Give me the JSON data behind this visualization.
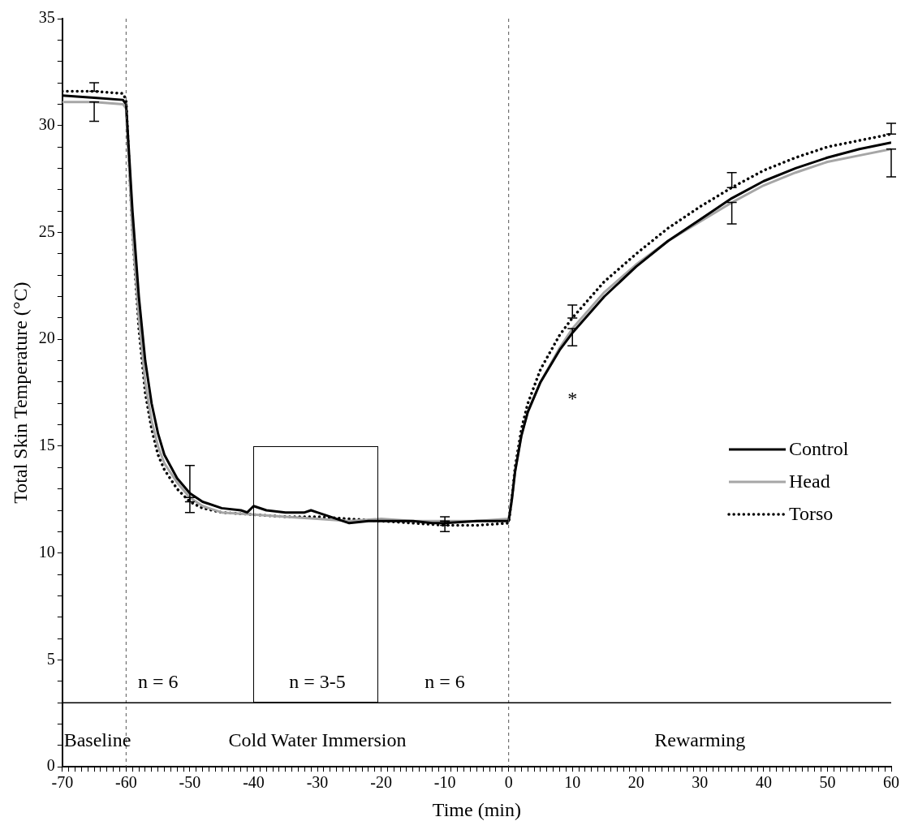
{
  "chart_data": {
    "type": "line",
    "xlabel": "Time (min)",
    "ylabel": "Total Skin Temperature (°C)",
    "xlim": [
      -70,
      60
    ],
    "ylim": [
      0,
      35
    ],
    "xticks": [
      -70,
      {
        "value": -69,
        "label": null
      },
      {
        "value": -68,
        "label": null
      },
      {
        "value": -67,
        "label": null
      },
      {
        "value": -66,
        "label": null
      },
      {
        "value": -65,
        "label": null
      },
      {
        "value": -64,
        "label": null
      },
      {
        "value": -63,
        "label": null
      },
      {
        "value": -62,
        "label": null
      },
      {
        "value": -61,
        "label": null
      },
      -60,
      {
        "value": -59,
        "label": null
      },
      {
        "value": -58,
        "label": null
      },
      {
        "value": -57,
        "label": null
      },
      {
        "value": -56,
        "label": null
      },
      {
        "value": -55,
        "label": null
      },
      {
        "value": -54,
        "label": null
      },
      {
        "value": -53,
        "label": null
      },
      {
        "value": -52,
        "label": null
      },
      {
        "value": -51,
        "label": null
      },
      -50,
      {
        "value": -49,
        "label": null
      },
      {
        "value": -48,
        "label": null
      },
      {
        "value": -47,
        "label": null
      },
      {
        "value": -46,
        "label": null
      },
      {
        "value": -45,
        "label": null
      },
      {
        "value": -44,
        "label": null
      },
      {
        "value": -43,
        "label": null
      },
      {
        "value": -42,
        "label": null
      },
      {
        "value": -41,
        "label": null
      },
      -40,
      {
        "value": -39,
        "label": null
      },
      {
        "value": -38,
        "label": null
      },
      {
        "value": -37,
        "label": null
      },
      {
        "value": -36,
        "label": null
      },
      {
        "value": -35,
        "label": null
      },
      {
        "value": -34,
        "label": null
      },
      {
        "value": -33,
        "label": null
      },
      {
        "value": -32,
        "label": null
      },
      {
        "value": -31,
        "label": null
      },
      -30,
      {
        "value": -29,
        "label": null
      },
      {
        "value": -28,
        "label": null
      },
      {
        "value": -27,
        "label": null
      },
      {
        "value": -26,
        "label": null
      },
      {
        "value": -25,
        "label": null
      },
      {
        "value": -24,
        "label": null
      },
      {
        "value": -23,
        "label": null
      },
      {
        "value": -22,
        "label": null
      },
      {
        "value": -21,
        "label": null
      },
      -20,
      {
        "value": -19,
        "label": null
      },
      {
        "value": -18,
        "label": null
      },
      {
        "value": -17,
        "label": null
      },
      {
        "value": -16,
        "label": null
      },
      {
        "value": -15,
        "label": null
      },
      {
        "value": -14,
        "label": null
      },
      {
        "value": -13,
        "label": null
      },
      {
        "value": -12,
        "label": null
      },
      {
        "value": -11,
        "label": null
      },
      -10,
      {
        "value": -9,
        "label": null
      },
      {
        "value": -8,
        "label": null
      },
      {
        "value": -7,
        "label": null
      },
      {
        "value": -6,
        "label": null
      },
      {
        "value": -5,
        "label": null
      },
      {
        "value": -4,
        "label": null
      },
      {
        "value": -3,
        "label": null
      },
      {
        "value": -2,
        "label": null
      },
      {
        "value": -1,
        "label": null
      },
      0,
      {
        "value": 1,
        "label": null
      },
      {
        "value": 2,
        "label": null
      },
      {
        "value": 3,
        "label": null
      },
      {
        "value": 4,
        "label": null
      },
      {
        "value": 5,
        "label": null
      },
      {
        "value": 6,
        "label": null
      },
      {
        "value": 7,
        "label": null
      },
      {
        "value": 8,
        "label": null
      },
      {
        "value": 9,
        "label": null
      },
      10,
      {
        "value": 11,
        "label": null
      },
      {
        "value": 12,
        "label": null
      },
      {
        "value": 13,
        "label": null
      },
      {
        "value": 14,
        "label": null
      },
      {
        "value": 15,
        "label": null
      },
      {
        "value": 16,
        "label": null
      },
      {
        "value": 17,
        "label": null
      },
      {
        "value": 18,
        "label": null
      },
      {
        "value": 19,
        "label": null
      },
      20,
      {
        "value": 21,
        "label": null
      },
      {
        "value": 22,
        "label": null
      },
      {
        "value": 23,
        "label": null
      },
      {
        "value": 24,
        "label": null
      },
      {
        "value": 25,
        "label": null
      },
      {
        "value": 26,
        "label": null
      },
      {
        "value": 27,
        "label": null
      },
      {
        "value": 28,
        "label": null
      },
      {
        "value": 29,
        "label": null
      },
      30,
      {
        "value": 31,
        "label": null
      },
      {
        "value": 32,
        "label": null
      },
      {
        "value": 33,
        "label": null
      },
      {
        "value": 34,
        "label": null
      },
      {
        "value": 35,
        "label": null
      },
      {
        "value": 36,
        "label": null
      },
      {
        "value": 37,
        "label": null
      },
      {
        "value": 38,
        "label": null
      },
      {
        "value": 39,
        "label": null
      },
      40,
      {
        "value": 41,
        "label": null
      },
      {
        "value": 42,
        "label": null
      },
      {
        "value": 43,
        "label": null
      },
      {
        "value": 44,
        "label": null
      },
      {
        "value": 45,
        "label": null
      },
      {
        "value": 46,
        "label": null
      },
      {
        "value": 47,
        "label": null
      },
      {
        "value": 48,
        "label": null
      },
      {
        "value": 49,
        "label": null
      },
      50,
      {
        "value": 51,
        "label": null
      },
      {
        "value": 52,
        "label": null
      },
      {
        "value": 53,
        "label": null
      },
      {
        "value": 54,
        "label": null
      },
      {
        "value": 55,
        "label": null
      },
      {
        "value": 56,
        "label": null
      },
      {
        "value": 57,
        "label": null
      },
      {
        "value": 58,
        "label": null
      },
      {
        "value": 59,
        "label": null
      },
      60
    ],
    "yticks": [
      0,
      {
        "value": 1,
        "label": null
      },
      {
        "value": 2,
        "label": null
      },
      {
        "value": 3,
        "label": null
      },
      {
        "value": 4,
        "label": null
      },
      5,
      {
        "value": 6,
        "label": null
      },
      {
        "value": 7,
        "label": null
      },
      {
        "value": 8,
        "label": null
      },
      {
        "value": 9,
        "label": null
      },
      10,
      {
        "value": 11,
        "label": null
      },
      {
        "value": 12,
        "label": null
      },
      {
        "value": 13,
        "label": null
      },
      {
        "value": 14,
        "label": null
      },
      15,
      {
        "value": 16,
        "label": null
      },
      {
        "value": 17,
        "label": null
      },
      {
        "value": 18,
        "label": null
      },
      {
        "value": 19,
        "label": null
      },
      20,
      {
        "value": 21,
        "label": null
      },
      {
        "value": 22,
        "label": null
      },
      {
        "value": 23,
        "label": null
      },
      {
        "value": 24,
        "label": null
      },
      25,
      {
        "value": 26,
        "label": null
      },
      {
        "value": 27,
        "label": null
      },
      {
        "value": 28,
        "label": null
      },
      {
        "value": 29,
        "label": null
      },
      30,
      {
        "value": 31,
        "label": null
      },
      {
        "value": 32,
        "label": null
      },
      {
        "value": 33,
        "label": null
      },
      {
        "value": 34,
        "label": null
      },
      35
    ],
    "grid": false,
    "legend": "right",
    "marker": "none",
    "series": [
      {
        "name": "Control",
        "color": "#000000",
        "line_style": "solid",
        "x": [
          -70,
          -65,
          -60.5,
          -60,
          -59,
          -58,
          -57,
          -56,
          -55,
          -54,
          -52,
          -50,
          -48,
          -45,
          -42,
          -41,
          -40,
          -38,
          -35,
          -32,
          -31,
          -30,
          -28,
          -25,
          -22,
          -20,
          -15,
          -12,
          -10,
          -5,
          -1,
          0,
          0.5,
          1,
          2,
          3,
          5,
          8,
          10,
          15,
          20,
          25,
          30,
          35,
          40,
          45,
          50,
          55,
          60
        ],
        "values": [
          31.4,
          31.3,
          31.2,
          31.0,
          26,
          22,
          19,
          17,
          15.6,
          14.6,
          13.5,
          12.8,
          12.4,
          12.1,
          12.0,
          11.9,
          12.2,
          12.0,
          11.9,
          11.9,
          12.0,
          11.9,
          11.7,
          11.4,
          11.5,
          11.5,
          11.5,
          11.4,
          11.4,
          11.5,
          11.5,
          11.5,
          12.5,
          13.8,
          15.5,
          16.6,
          18.0,
          19.5,
          20.3,
          22.0,
          23.4,
          24.6,
          25.6,
          26.6,
          27.4,
          28.0,
          28.5,
          28.9,
          29.2
        ]
      },
      {
        "name": "Head",
        "color": "#a6a6a6",
        "line_style": "solid",
        "x": [
          -70,
          -65,
          -60.5,
          -60,
          -59,
          -58,
          -57,
          -56,
          -55,
          -54,
          -52,
          -50,
          -48,
          -45,
          -40,
          -35,
          -30,
          -25,
          -20,
          -15,
          -10,
          -5,
          0,
          0.5,
          1,
          2,
          3,
          5,
          8,
          10,
          15,
          20,
          25,
          30,
          35,
          40,
          45,
          50,
          55,
          60
        ],
        "values": [
          31.1,
          31.1,
          31.0,
          30.8,
          25,
          21,
          18,
          16.2,
          15.0,
          14.2,
          13.3,
          12.6,
          12.2,
          11.9,
          11.8,
          11.7,
          11.6,
          11.5,
          11.6,
          11.5,
          11.5,
          11.5,
          11.6,
          12.5,
          13.8,
          15.5,
          16.6,
          18.0,
          19.6,
          20.5,
          22.2,
          23.5,
          24.6,
          25.5,
          26.4,
          27.2,
          27.8,
          28.3,
          28.6,
          28.9
        ],
        "errors": [
          null,
          [
            30.2,
            31.1
          ],
          null,
          null,
          null,
          null,
          null,
          null,
          null,
          null,
          null,
          [
            11.9,
            12.6
          ],
          null,
          null,
          null,
          null,
          null,
          null,
          null,
          null,
          [
            11.0,
            11.5
          ],
          null,
          null,
          null,
          null,
          null,
          null,
          null,
          null,
          [
            19.7,
            20.5
          ],
          null,
          null,
          null,
          null,
          [
            25.4,
            26.4
          ],
          null,
          null,
          null,
          null,
          [
            27.6,
            28.9
          ]
        ]
      },
      {
        "name": "Torso",
        "color": "#000000",
        "line_style": "dotted",
        "x": [
          -70,
          -65,
          -60.5,
          -60,
          -59,
          -58,
          -57,
          -56,
          -55,
          -54,
          -52,
          -50,
          -48,
          -45,
          -40,
          -35,
          -30,
          -25,
          -20,
          -15,
          -10,
          -5,
          0,
          0.5,
          1,
          2,
          3,
          5,
          8,
          10,
          15,
          20,
          25,
          30,
          35,
          40,
          45,
          50,
          55,
          60
        ],
        "values": [
          31.6,
          31.6,
          31.5,
          31.2,
          25,
          20.5,
          17.5,
          15.8,
          14.6,
          13.9,
          13.0,
          12.4,
          12.1,
          11.9,
          11.8,
          11.7,
          11.7,
          11.6,
          11.5,
          11.4,
          11.3,
          11.3,
          11.4,
          12.6,
          14.0,
          15.8,
          17.0,
          18.6,
          20.2,
          21.0,
          22.7,
          24.0,
          25.2,
          26.2,
          27.1,
          27.9,
          28.5,
          29.0,
          29.3,
          29.6
        ],
        "errors": [
          null,
          [
            31.6,
            32.0
          ],
          null,
          null,
          null,
          null,
          null,
          null,
          null,
          null,
          null,
          [
            12.4,
            14.1
          ],
          null,
          null,
          null,
          null,
          null,
          null,
          null,
          null,
          [
            11.3,
            11.7
          ],
          null,
          null,
          null,
          null,
          null,
          null,
          null,
          null,
          [
            21.0,
            21.6
          ],
          null,
          null,
          null,
          null,
          [
            27.1,
            27.8
          ],
          null,
          null,
          null,
          null,
          [
            29.6,
            30.1
          ]
        ]
      }
    ],
    "ref_lines": [
      {
        "axis": "x",
        "value": -60,
        "line_style": "dashed",
        "color": "#555555"
      },
      {
        "axis": "x",
        "value": 0,
        "line_style": "dashed",
        "color": "#555555"
      },
      {
        "axis": "y",
        "value": 3,
        "line_style": "solid",
        "color": "#000000"
      }
    ],
    "annotations": [
      "n = 6",
      "n = 3-5",
      "n = 6",
      "Baseline",
      "Cold Water Immersion",
      "Rewarming",
      "*"
    ]
  }
}
